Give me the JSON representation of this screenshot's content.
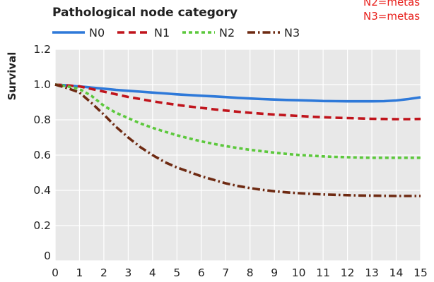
{
  "chart_data": {
    "type": "line",
    "title": "",
    "xlabel": "",
    "ylabel": "Survival",
    "legend_title": "Pathological node category",
    "legend_position": "top",
    "xlim": [
      0,
      15
    ],
    "ylim": [
      0,
      1.2
    ],
    "x_ticks": [
      "0",
      "1",
      "2",
      "3",
      "4",
      "5",
      "6",
      "7",
      "8",
      "9",
      "10",
      "11",
      "12",
      "13",
      "14",
      "15"
    ],
    "y_ticks": [
      "0",
      "0.2",
      "0.4",
      "0.6",
      "0.8",
      "1.0",
      "1.2"
    ],
    "grid": true,
    "annotations": [
      "N2=metas",
      "N3=metas"
    ],
    "x": [
      0,
      0.5,
      1,
      1.5,
      2,
      2.5,
      3,
      3.5,
      4,
      4.5,
      5,
      5.5,
      6,
      6.5,
      7,
      7.5,
      8,
      8.5,
      9,
      9.5,
      10,
      10.5,
      11,
      11.5,
      12,
      12.5,
      13,
      13.5,
      14,
      14.5,
      15
    ],
    "series": [
      {
        "name": "N0",
        "color": "#2e79d9",
        "dash": "solid",
        "values": [
          1.0,
          0.995,
          0.99,
          0.983,
          0.977,
          0.97,
          0.965,
          0.96,
          0.955,
          0.95,
          0.945,
          0.941,
          0.937,
          0.933,
          0.929,
          0.925,
          0.921,
          0.918,
          0.915,
          0.913,
          0.911,
          0.909,
          0.907,
          0.906,
          0.905,
          0.905,
          0.905,
          0.906,
          0.91,
          0.918,
          0.928
        ]
      },
      {
        "name": "N1",
        "color": "#c0141c",
        "dash": "dash",
        "values": [
          1.0,
          0.995,
          0.99,
          0.975,
          0.96,
          0.945,
          0.93,
          0.918,
          0.905,
          0.895,
          0.885,
          0.876,
          0.868,
          0.86,
          0.853,
          0.846,
          0.84,
          0.835,
          0.83,
          0.826,
          0.822,
          0.818,
          0.815,
          0.812,
          0.81,
          0.808,
          0.806,
          0.805,
          0.804,
          0.804,
          0.805
        ]
      },
      {
        "name": "N2",
        "color": "#5cc83c",
        "dash": "short-dash",
        "values": [
          1.0,
          0.99,
          0.975,
          0.935,
          0.88,
          0.84,
          0.81,
          0.78,
          0.755,
          0.733,
          0.713,
          0.695,
          0.678,
          0.664,
          0.651,
          0.64,
          0.63,
          0.622,
          0.614,
          0.607,
          0.601,
          0.597,
          0.593,
          0.59,
          0.588,
          0.586,
          0.585,
          0.585,
          0.585,
          0.585,
          0.585
        ]
      },
      {
        "name": "N3",
        "color": "#6e2a12",
        "dash": "dash-dot",
        "values": [
          1.0,
          0.98,
          0.955,
          0.895,
          0.83,
          0.76,
          0.7,
          0.645,
          0.6,
          0.56,
          0.53,
          0.505,
          0.48,
          0.46,
          0.44,
          0.425,
          0.413,
          0.403,
          0.395,
          0.389,
          0.384,
          0.38,
          0.377,
          0.375,
          0.373,
          0.371,
          0.37,
          0.369,
          0.368,
          0.368,
          0.368
        ]
      }
    ]
  }
}
